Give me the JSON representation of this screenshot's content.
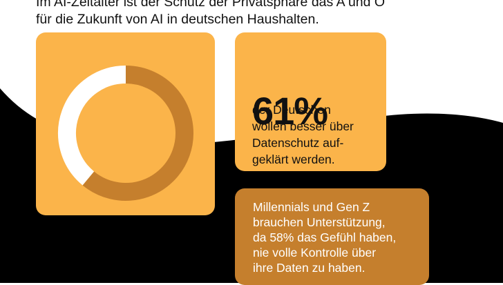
{
  "intro_lines": [
    "Im AI-Zeitalter ist der Schutz der Privatsphäre das A und O",
    "für die Zukunft von AI in deutschen Haushalten."
  ],
  "stat": {
    "value": "61%",
    "lines": [
      "der Deutschen",
      "wollen besser über",
      "Datenschutz auf-",
      "geklärt werden."
    ]
  },
  "note": {
    "lines": [
      "Millennials und Gen Z",
      "brauchen Unterstützung,",
      "da 58% das Gefühl haben,",
      "nie volle Kontrolle über",
      "ihre Daten zu haben."
    ]
  },
  "colors": {
    "card": "#fbb44a",
    "ring_fill": "#c57f2d",
    "ring_rest": "#ffffff",
    "note_card": "#c57f2d",
    "background_shape": "#000000"
  },
  "chart_data": {
    "type": "pie",
    "variant": "donut",
    "values": [
      61,
      39
    ],
    "start": "top",
    "direction": "clockwise"
  }
}
